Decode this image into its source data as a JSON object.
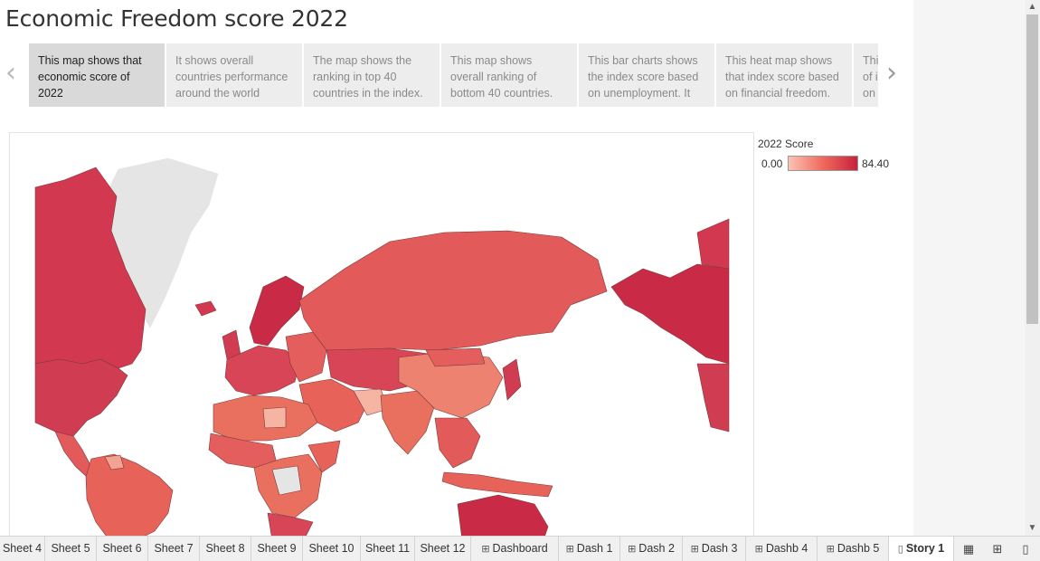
{
  "story": {
    "title": "Economic Freedom score 2022",
    "points": [
      {
        "text": "This map shows that economic score of 2022",
        "active": true
      },
      {
        "text": "It shows overall countries performance around the world",
        "active": false
      },
      {
        "text": "The map shows the ranking in top 40 countries in the index.",
        "active": false
      },
      {
        "text": "This map shows overall ranking of bottom 40 countries.",
        "active": false
      },
      {
        "text": "This bar charts shows the index score based on unemployment. It",
        "active": false
      },
      {
        "text": "This heat map shows that index score based on financial freedom.",
        "active": false
      },
      {
        "text": "Thi of i on",
        "active": false
      }
    ],
    "prev_icon": "chevron-left-icon",
    "next_icon": "chevron-right-icon"
  },
  "legend": {
    "title": "2022 Score",
    "min": "0.00",
    "max": "84.40",
    "colors": {
      "low": "#fbc2b4",
      "mid": "#ef6a5c",
      "high": "#c8213f",
      "nodata": "#e5e5e5"
    }
  },
  "tabs": [
    {
      "label": "Sheet 4",
      "icon": ""
    },
    {
      "label": "Sheet 5",
      "icon": ""
    },
    {
      "label": "Sheet 6",
      "icon": ""
    },
    {
      "label": "Sheet 7",
      "icon": ""
    },
    {
      "label": "Sheet 8",
      "icon": ""
    },
    {
      "label": "Sheet 9",
      "icon": ""
    },
    {
      "label": "Sheet 10",
      "icon": ""
    },
    {
      "label": "Sheet 11",
      "icon": ""
    },
    {
      "label": "Sheet 12",
      "icon": ""
    },
    {
      "label": "Dashboard",
      "icon": "dashboard-icon"
    },
    {
      "label": "Dash 1",
      "icon": "dashboard-icon"
    },
    {
      "label": "Dash 2",
      "icon": "dashboard-icon"
    },
    {
      "label": "Dash 3",
      "icon": "dashboard-icon"
    },
    {
      "label": "Dashb 4",
      "icon": "dashboard-icon"
    },
    {
      "label": "Dashb 5",
      "icon": "dashboard-icon"
    },
    {
      "label": "Story 1",
      "icon": "story-icon",
      "active": true
    }
  ],
  "tab_actions": [
    "new-worksheet-icon",
    "new-dashboard-icon",
    "new-story-icon"
  ]
}
